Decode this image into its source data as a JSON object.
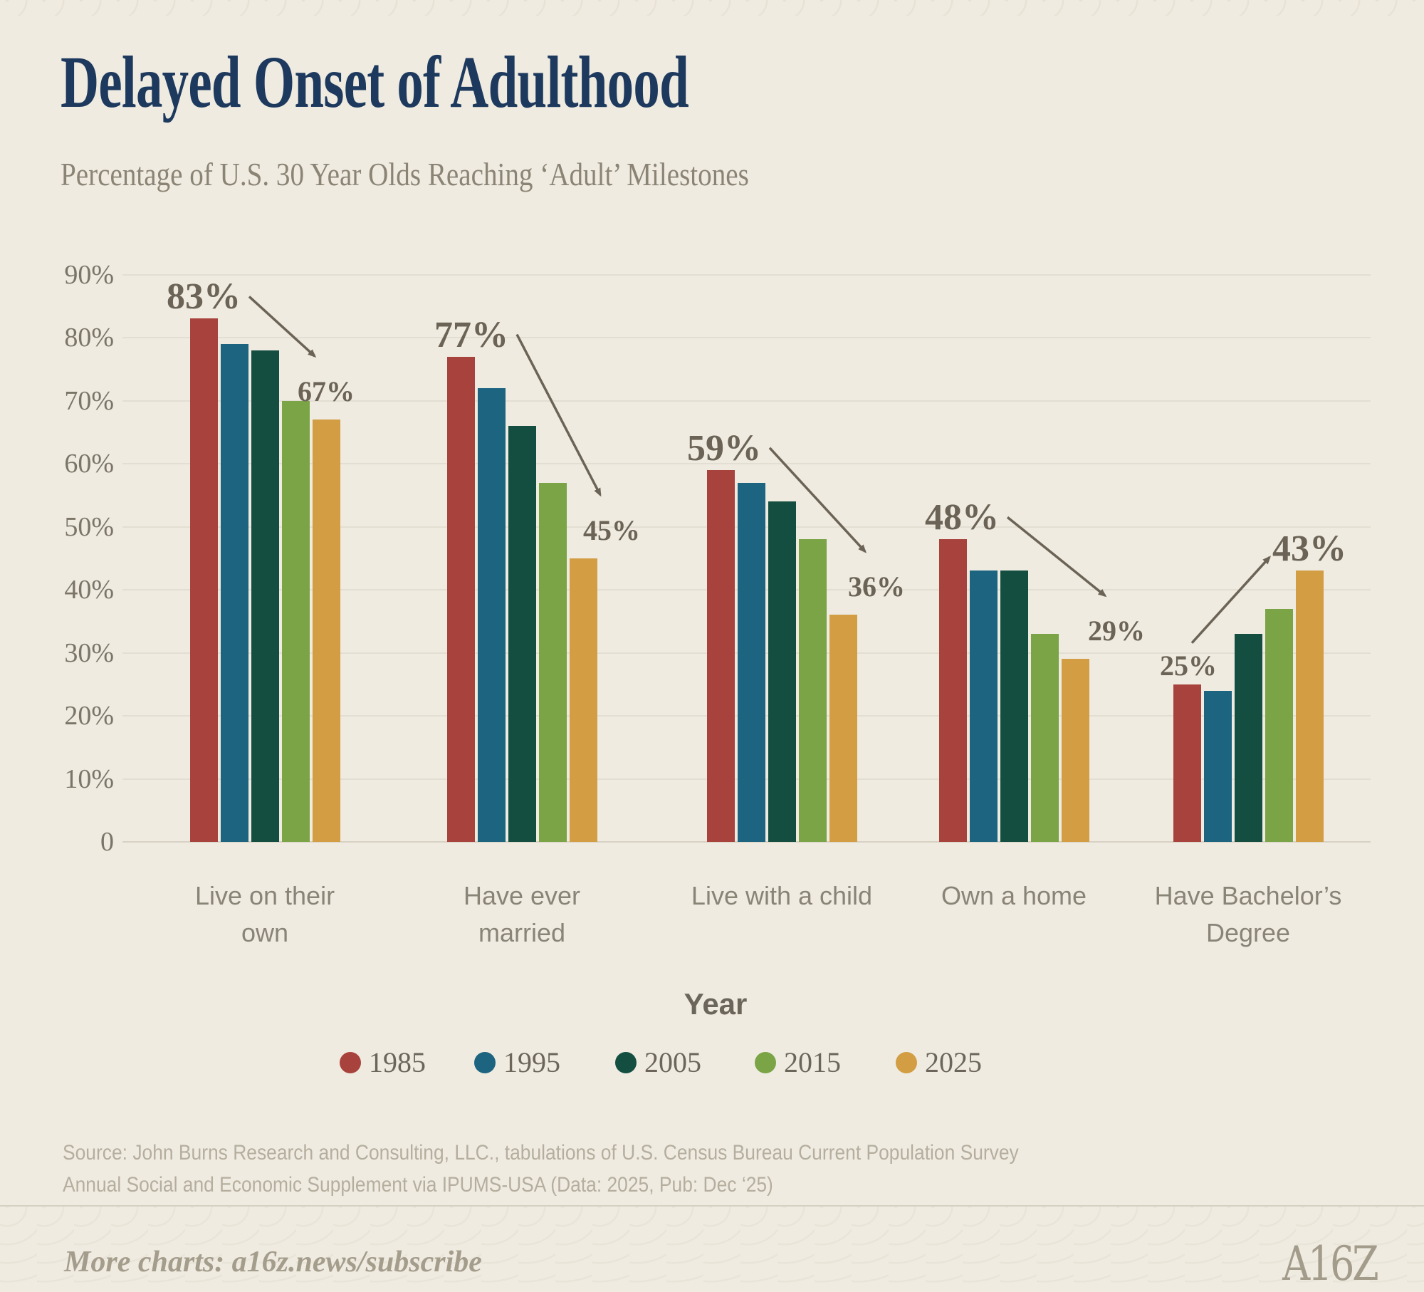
{
  "header": {
    "title": "Delayed Onset of Adulthood",
    "subtitle": "Percentage of U.S. 30 Year Olds Reaching ‘Adult’ Milestones"
  },
  "chart_data": {
    "type": "bar",
    "title": "Delayed Onset of Adulthood",
    "subtitle": "Percentage of U.S. 30 Year Olds Reaching ‘Adult’ Milestones",
    "categories": [
      "Live on their own",
      "Have ever married",
      "Live with a child",
      "Own a home",
      "Have Bachelor’s Degree"
    ],
    "categories_wrapped": [
      "Live on their\nown",
      "Have ever\nmarried",
      "Live with a child",
      "Own a home",
      "Have Bachelor’s\nDegree"
    ],
    "x_axis_title": "Year",
    "ylabel": "",
    "ylim": [
      0,
      90
    ],
    "grid": true,
    "legend_position": "bottom",
    "yticks": [
      {
        "label": "90%",
        "value": 90
      },
      {
        "label": "80%",
        "value": 80
      },
      {
        "label": "70%",
        "value": 70
      },
      {
        "label": "60%",
        "value": 60
      },
      {
        "label": "50%",
        "value": 50
      },
      {
        "label": "40%",
        "value": 40
      },
      {
        "label": "30%",
        "value": 30
      },
      {
        "label": "20%",
        "value": 20
      },
      {
        "label": "10%",
        "value": 10
      },
      {
        "label": "0",
        "value": 0
      }
    ],
    "series": [
      {
        "name": "1985",
        "color": "#a8423c",
        "values": [
          83,
          77,
          59,
          48,
          25
        ]
      },
      {
        "name": "1995",
        "color": "#1c6480",
        "values": [
          79,
          72,
          57,
          43,
          24
        ]
      },
      {
        "name": "2005",
        "color": "#134e40",
        "values": [
          78,
          66,
          54,
          43,
          33
        ]
      },
      {
        "name": "2015",
        "color": "#7aa446",
        "values": [
          70,
          57,
          48,
          33,
          37
        ]
      },
      {
        "name": "2025",
        "color": "#d29d43",
        "values": [
          67,
          45,
          36,
          29,
          43
        ]
      }
    ],
    "annotations": [
      {
        "category": "Live on their own",
        "start_label": "83%",
        "end_label": "67%",
        "trend": "down",
        "start_dx": 0,
        "end_dx": 0
      },
      {
        "category": "Have ever married",
        "start_label": "77%",
        "end_label": "45%",
        "trend": "down",
        "start_dx": 15,
        "end_dx": 40
      },
      {
        "category": "Live with a child",
        "start_label": "59%",
        "end_label": "36%",
        "trend": "down",
        "start_dx": 5,
        "end_dx": 47
      },
      {
        "category": "Own a home",
        "start_label": "48%",
        "end_label": "29%",
        "trend": "down",
        "start_dx": 13,
        "end_dx": 58
      },
      {
        "category": "Have Bachelor’s Degree",
        "start_label": "25%",
        "end_label": "43%",
        "trend": "up",
        "start_dx": 2,
        "end_dx": 0
      }
    ]
  },
  "legend": {
    "title": "Year",
    "items": [
      {
        "label": "1985",
        "color": "#a8423c"
      },
      {
        "label": "1995",
        "color": "#1c6480"
      },
      {
        "label": "2005",
        "color": "#134e40"
      },
      {
        "label": "2015",
        "color": "#7aa446"
      },
      {
        "label": "2025",
        "color": "#d29d43"
      }
    ]
  },
  "source": {
    "line1": "Source: John Burns Research and Consulting, LLC., tabulations of U.S. Census Bureau Current Population Survey",
    "line2": "Annual Social and Economic Supplement via IPUMS-USA (Data: 2025, Pub: Dec ‘25)"
  },
  "footer": {
    "text": "More charts: a16z.news/subscribe",
    "logo": "A16Z"
  },
  "colors": {
    "background": "#efebe1",
    "title": "#1d3a5e",
    "subtitle": "#8b8474",
    "annotation": "#6b6355",
    "axis_text": "#7b7567",
    "category_text": "#8a8477",
    "gridline": "#e3ded2",
    "source_text": "#b5ae9e",
    "footer_text": "#a49d8c"
  }
}
